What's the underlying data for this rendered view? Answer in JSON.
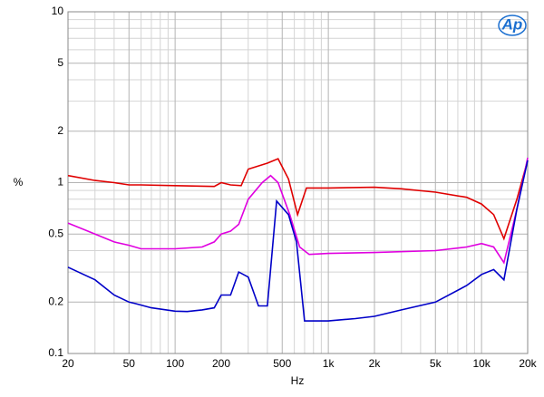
{
  "chart_data": {
    "type": "line",
    "logo": "Ap",
    "xlabel": "Hz",
    "ylabel": "%",
    "xscale": "log",
    "yscale": "log",
    "grid": true,
    "xlim": [
      20,
      20000
    ],
    "ylim": [
      0.1,
      10
    ],
    "xticks": [
      20,
      50,
      100,
      200,
      500,
      {
        "value": 1000,
        "label": "1k"
      },
      {
        "value": 2000,
        "label": "2k"
      },
      {
        "value": 5000,
        "label": "5k"
      },
      {
        "value": 10000,
        "label": "10k"
      },
      {
        "value": 20000,
        "label": "20k"
      }
    ],
    "yticks": [
      0.1,
      0.2,
      0.5,
      1,
      2,
      5,
      10
    ],
    "xminorticks": [
      30,
      40,
      60,
      70,
      80,
      90,
      300,
      400,
      600,
      700,
      800,
      900,
      3000,
      4000,
      6000,
      7000,
      8000,
      9000
    ],
    "yminorticks": [
      0.3,
      0.4,
      0.6,
      0.7,
      0.8,
      0.9,
      3,
      4,
      6,
      7,
      8,
      9
    ],
    "series": [
      {
        "color": "#e00000",
        "x": [
          20,
          30,
          40,
          50,
          60,
          100,
          180,
          200,
          230,
          270,
          300,
          400,
          470,
          550,
          630,
          720,
          1000,
          2000,
          3000,
          5000,
          8000,
          10000,
          12000,
          14000,
          17000,
          20000
        ],
        "values": [
          1.1,
          1.03,
          1.0,
          0.97,
          0.97,
          0.96,
          0.95,
          1.0,
          0.97,
          0.96,
          1.2,
          1.3,
          1.38,
          1.05,
          0.65,
          0.93,
          0.93,
          0.94,
          0.92,
          0.88,
          0.82,
          0.75,
          0.65,
          0.47,
          0.8,
          1.35
        ]
      },
      {
        "color": "#e000e0",
        "x": [
          20,
          30,
          40,
          50,
          60,
          80,
          100,
          150,
          180,
          200,
          230,
          260,
          300,
          370,
          420,
          470,
          560,
          650,
          750,
          1000,
          2000,
          5000,
          8000,
          10000,
          12000,
          14000,
          17000,
          20000
        ],
        "values": [
          0.58,
          0.5,
          0.45,
          0.43,
          0.41,
          0.41,
          0.41,
          0.42,
          0.45,
          0.5,
          0.52,
          0.57,
          0.8,
          1.0,
          1.1,
          1.0,
          0.65,
          0.42,
          0.38,
          0.385,
          0.39,
          0.4,
          0.42,
          0.44,
          0.42,
          0.34,
          0.7,
          1.4
        ]
      },
      {
        "color": "#0000c8",
        "x": [
          20,
          30,
          40,
          50,
          55,
          70,
          100,
          120,
          150,
          180,
          200,
          230,
          260,
          300,
          350,
          400,
          460,
          550,
          620,
          700,
          1000,
          1500,
          2000,
          3000,
          5000,
          8000,
          10000,
          12000,
          14000,
          17000,
          20000
        ],
        "values": [
          0.32,
          0.27,
          0.22,
          0.2,
          0.196,
          0.185,
          0.177,
          0.176,
          0.18,
          0.185,
          0.22,
          0.22,
          0.3,
          0.28,
          0.19,
          0.19,
          0.78,
          0.65,
          0.45,
          0.155,
          0.155,
          0.16,
          0.165,
          0.18,
          0.2,
          0.25,
          0.29,
          0.31,
          0.27,
          0.7,
          1.35
        ]
      }
    ]
  }
}
